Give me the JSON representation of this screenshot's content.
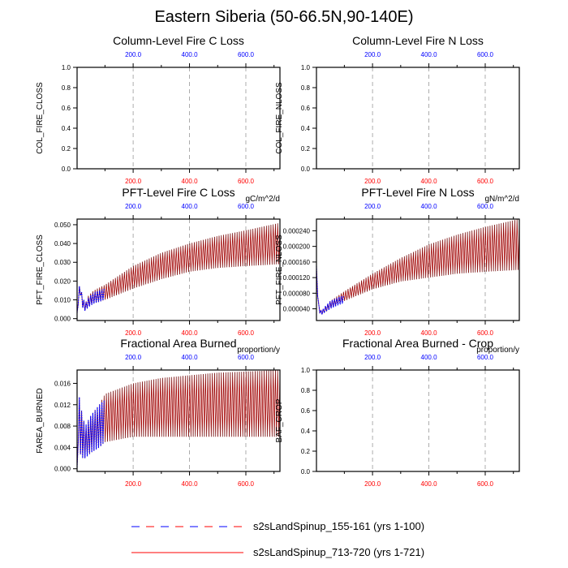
{
  "title": "Eastern Siberia (50-66.5N,90-140E)",
  "colors": {
    "early": "#0000ff",
    "late": "#ff0000",
    "frame": "#000000",
    "grid": "#999999"
  },
  "legend": {
    "items": [
      {
        "label": "s2sLandSpinup_155-161 (yrs 1-100)",
        "style": "dashed",
        "color": "#ff0000",
        "color2": "#0000ff"
      },
      {
        "label": "s2sLandSpinup_713-720 (yrs 1-721)",
        "style": "solid",
        "color": "#ff0000"
      }
    ]
  },
  "chart_data": [
    {
      "type": "line",
      "title": "Column-Level Fire C Loss",
      "ylabel": "COL_FIRE_CLOSS",
      "units": "",
      "xlim": [
        1,
        721
      ],
      "ylim": [
        0,
        1
      ],
      "yticks": [
        0.0,
        0.2,
        0.4,
        0.6,
        0.8,
        1.0
      ],
      "ytick_labels": [
        "0.0",
        "0.2",
        "0.4",
        "0.6",
        "0.8",
        "1.0"
      ],
      "top_ticks": [
        200,
        400,
        600
      ],
      "top_tick_labels": [
        "200.0",
        "400.0",
        "600.0"
      ],
      "bottom_tick_labels": [
        "200.0",
        "400.0",
        "600.0"
      ],
      "series": []
    },
    {
      "type": "line",
      "title": "Column-Level Fire N Loss",
      "ylabel": "COL_FIRE_NLOSS",
      "units": "",
      "xlim": [
        1,
        721
      ],
      "ylim": [
        0,
        1
      ],
      "yticks": [
        0.0,
        0.2,
        0.4,
        0.6,
        0.8,
        1.0
      ],
      "ytick_labels": [
        "0.0",
        "0.2",
        "0.4",
        "0.6",
        "0.8",
        "1.0"
      ],
      "top_ticks": [
        200,
        400,
        600
      ],
      "top_tick_labels": [
        "200.0",
        "400.0",
        "600.0"
      ],
      "bottom_tick_labels": [
        "200.0",
        "400.0",
        "600.0"
      ],
      "series": []
    },
    {
      "type": "line",
      "title": "PFT-Level Fire C Loss",
      "ylabel": "PFT_FIRE_CLOSS",
      "units": "gC/m^2/d",
      "xlim": [
        1,
        721
      ],
      "ylim": [
        -0.001,
        0.053
      ],
      "yticks": [
        0.0,
        0.01,
        0.02,
        0.03,
        0.04,
        0.05
      ],
      "ytick_labels": [
        "0.000",
        "0.010",
        "0.020",
        "0.030",
        "0.040",
        "0.050"
      ],
      "top_ticks": [
        200,
        400,
        600
      ],
      "top_tick_labels": [
        "200.0",
        "400.0",
        "600.0"
      ],
      "bottom_tick_labels": [
        "200.0",
        "400.0",
        "600.0"
      ],
      "series": [
        {
          "run": "s2sLandSpinup_713-720 (yrs 1-721)",
          "period": 8,
          "x": [
            1,
            10,
            20,
            30,
            40,
            60,
            100,
            150,
            200,
            300,
            400,
            500,
            600,
            721
          ],
          "upper": [
            0.003,
            0.019,
            0.012,
            0.008,
            0.012,
            0.015,
            0.018,
            0.023,
            0.028,
            0.035,
            0.04,
            0.044,
            0.047,
            0.051
          ],
          "lower": [
            0.002,
            0.015,
            0.006,
            0.004,
            0.006,
            0.008,
            0.01,
            0.013,
            0.016,
            0.021,
            0.025,
            0.027,
            0.028,
            0.029
          ]
        },
        {
          "run": "s2sLandSpinup_155-161 (yrs 1-100)",
          "period": 8,
          "x": [
            1,
            10,
            20,
            30,
            40,
            60,
            80,
            100
          ],
          "upper": [
            0.003,
            0.019,
            0.012,
            0.008,
            0.011,
            0.014,
            0.015,
            0.016
          ],
          "lower": [
            0.002,
            0.015,
            0.006,
            0.004,
            0.006,
            0.008,
            0.009,
            0.01
          ]
        }
      ]
    },
    {
      "type": "line",
      "title": "PFT-Level Fire N Loss",
      "ylabel": "PFT_FIRE_NLOSS",
      "units": "gN/m^2/d",
      "xlim": [
        1,
        721
      ],
      "ylim": [
        1e-05,
        0.00027
      ],
      "yticks": [
        4e-05,
        8e-05,
        0.00012,
        0.00016,
        0.0002,
        0.00024
      ],
      "ytick_labels": [
        "0.000040",
        "0.000080",
        "0.000120",
        "0.000160",
        "0.000200",
        "0.000240"
      ],
      "top_ticks": [
        200,
        400,
        600
      ],
      "top_tick_labels": [
        "200.0",
        "400.0",
        "600.0"
      ],
      "bottom_tick_labels": [
        "200.0",
        "400.0",
        "600.0"
      ],
      "series": [
        {
          "run": "s2sLandSpinup_713-720 (yrs 1-721)",
          "period": 8,
          "x": [
            1,
            10,
            20,
            30,
            50,
            100,
            200,
            300,
            400,
            500,
            600,
            721
          ],
          "upper": [
            0.00015,
            4e-05,
            3.5e-05,
            4.5e-05,
            6e-05,
            8.5e-05,
            0.00013,
            0.00017,
            0.000205,
            0.00023,
            0.00025,
            0.00027
          ],
          "lower": [
            0.00011,
            3e-05,
            2.5e-05,
            3e-05,
            4e-05,
            6e-05,
            9e-05,
            0.00011,
            0.00012,
            0.00013,
            0.000135,
            0.00014
          ]
        },
        {
          "run": "s2sLandSpinup_155-161 (yrs 1-100)",
          "period": 8,
          "x": [
            1,
            10,
            20,
            30,
            50,
            80,
            100
          ],
          "upper": [
            0.00015,
            4e-05,
            3.5e-05,
            4.5e-05,
            6e-05,
            7e-05,
            7.5e-05
          ],
          "lower": [
            0.00011,
            3e-05,
            2.5e-05,
            3e-05,
            4e-05,
            5e-05,
            5.5e-05
          ]
        }
      ]
    },
    {
      "type": "line",
      "title": "Fractional Area Burned",
      "ylabel": "FAREA_BURNED",
      "units": "proportion/y",
      "xlim": [
        1,
        721
      ],
      "ylim": [
        -0.0005,
        0.0185
      ],
      "yticks": [
        0.0,
        0.004,
        0.008,
        0.012,
        0.016
      ],
      "ytick_labels": [
        "0.000",
        "0.004",
        "0.008",
        "0.012",
        "0.016"
      ],
      "top_ticks": [
        200,
        400,
        600
      ],
      "top_tick_labels": [
        "200.0",
        "400.0",
        "600.0"
      ],
      "bottom_tick_labels": [
        "200.0",
        "400.0",
        "600.0"
      ],
      "series": [
        {
          "run": "s2sLandSpinup_713-720 (yrs 1-721)",
          "period": 8,
          "x": [
            1,
            5,
            10,
            20,
            30,
            50,
            80,
            100,
            200,
            300,
            400,
            500,
            600,
            721
          ],
          "upper": [
            0.0002,
            0.015,
            0.013,
            0.01,
            0.008,
            0.01,
            0.012,
            0.014,
            0.016,
            0.017,
            0.0175,
            0.018,
            0.0182,
            0.0185
          ],
          "lower": [
            0.0,
            0.005,
            0.003,
            0.002,
            0.002,
            0.003,
            0.004,
            0.005,
            0.006,
            0.006,
            0.006,
            0.006,
            0.006,
            0.006
          ]
        },
        {
          "run": "s2sLandSpinup_155-161 (yrs 1-100)",
          "period": 8,
          "x": [
            1,
            5,
            10,
            20,
            30,
            50,
            80,
            100
          ],
          "upper": [
            0.0002,
            0.015,
            0.013,
            0.01,
            0.008,
            0.01,
            0.012,
            0.013
          ],
          "lower": [
            0.0,
            0.005,
            0.003,
            0.002,
            0.002,
            0.003,
            0.004,
            0.005
          ]
        }
      ]
    },
    {
      "type": "line",
      "title": "Fractional Area Burned - Crop",
      "ylabel": "BAF_CROP",
      "units": "proportion/y",
      "xlim": [
        1,
        721
      ],
      "ylim": [
        0,
        1
      ],
      "yticks": [
        0.0,
        0.2,
        0.4,
        0.6,
        0.8,
        1.0
      ],
      "ytick_labels": [
        "0.0",
        "0.2",
        "0.4",
        "0.6",
        "0.8",
        "1.0"
      ],
      "top_ticks": [
        200,
        400,
        600
      ],
      "top_tick_labels": [
        "200.0",
        "400.0",
        "600.0"
      ],
      "bottom_tick_labels": [
        "200.0",
        "400.0",
        "600.0"
      ],
      "series": []
    }
  ]
}
